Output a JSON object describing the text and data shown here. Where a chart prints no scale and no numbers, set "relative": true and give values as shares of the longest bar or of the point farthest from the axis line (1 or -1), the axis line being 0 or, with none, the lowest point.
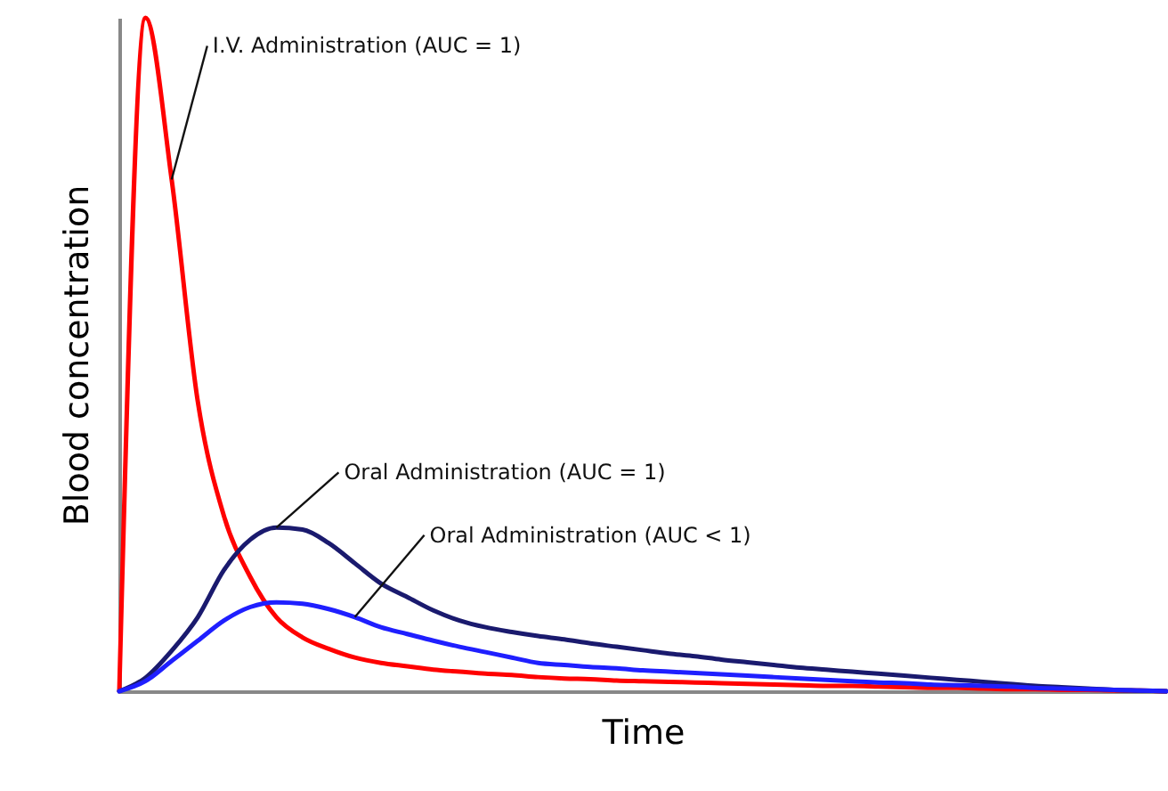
{
  "chart_data": {
    "type": "line",
    "xlabel": "Time",
    "ylabel": "Blood concentration",
    "relative": true,
    "grid": false,
    "marker": "none",
    "line_style": "solid",
    "categories": [
      null,
      null,
      null,
      null,
      null,
      null,
      null,
      null,
      null,
      null,
      null,
      null,
      null,
      null,
      null,
      null,
      null,
      null,
      null,
      null,
      null,
      null,
      null,
      null,
      null,
      null,
      null,
      null,
      null,
      null,
      null,
      null,
      null,
      null,
      null,
      null,
      null,
      null,
      null,
      null,
      null
    ],
    "series": [
      {
        "name": "I.V. Administration (AUC = 1)",
        "color": "#ff0000",
        "values": [
          0,
          1.0,
          0.76,
          0.43,
          0.26,
          0.17,
          0.11,
          0.08,
          0.063,
          0.05,
          0.042,
          0.037,
          0.032,
          0.029,
          0.026,
          0.024,
          0.021,
          0.019,
          0.018,
          0.016,
          0.015,
          0.014,
          0.013,
          0.012,
          0.011,
          0.01,
          0.009,
          0.008,
          0.008,
          0.007,
          0.006,
          0.005,
          0.005,
          0.004,
          0.003,
          0.003,
          0.002,
          0.002,
          0.001,
          0.001,
          0
        ]
      },
      {
        "name": "Oral Administration (AUC = 1)",
        "color": "#1a1a6e",
        "values": [
          0,
          0.02,
          0.06,
          0.11,
          0.18,
          0.225,
          0.243,
          0.24,
          0.22,
          0.19,
          0.16,
          0.14,
          0.12,
          0.105,
          0.095,
          0.088,
          0.082,
          0.077,
          0.071,
          0.066,
          0.061,
          0.056,
          0.052,
          0.047,
          0.043,
          0.039,
          0.035,
          0.032,
          0.029,
          0.026,
          0.023,
          0.02,
          0.017,
          0.014,
          0.011,
          0.008,
          0.006,
          0.004,
          0.002,
          0.001,
          0
        ]
      },
      {
        "name": "Oral Administration (AUC < 1)",
        "color": "#1f1fff",
        "values": [
          0,
          0.015,
          0.045,
          0.075,
          0.105,
          0.125,
          0.132,
          0.13,
          0.122,
          0.11,
          0.095,
          0.085,
          0.075,
          0.066,
          0.058,
          0.05,
          0.042,
          0.039,
          0.036,
          0.034,
          0.031,
          0.029,
          0.027,
          0.025,
          0.023,
          0.021,
          0.019,
          0.017,
          0.015,
          0.013,
          0.012,
          0.01,
          0.009,
          0.008,
          0.007,
          0.005,
          0.004,
          0.003,
          0.002,
          0.001,
          0
        ]
      }
    ]
  }
}
